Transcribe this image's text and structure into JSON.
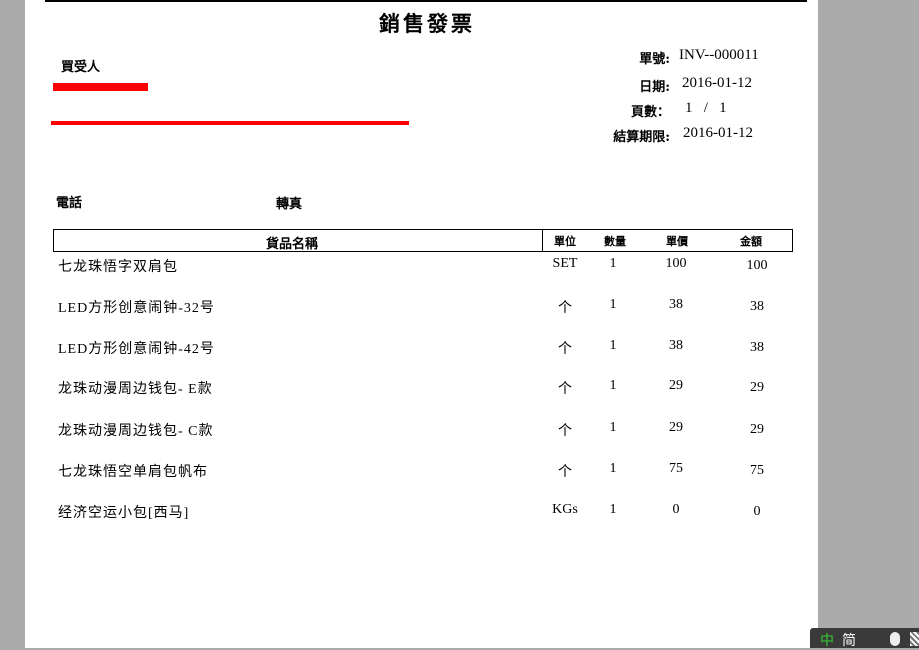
{
  "title": "銷售發票",
  "buyer": {
    "label": "買受人"
  },
  "meta": [
    {
      "label": "單號:",
      "value": "INV--000011"
    },
    {
      "label": "日期:",
      "value": "2016-01-12"
    },
    {
      "label": "頁數：",
      "value": "1   /   1"
    },
    {
      "label": "結算期限:",
      "value": "2016-01-12"
    }
  ],
  "contact": {
    "phone_label": "電話",
    "fax_label": "轉真"
  },
  "table": {
    "headers": [
      "貨品名稱",
      "單位",
      "數量",
      "單價",
      "金額"
    ],
    "rows": [
      [
        "七龙珠悟字双肩包",
        "SET",
        "1",
        "100",
        "100"
      ],
      [
        "LED方形创意闹钟-32号",
        "个",
        "1",
        "38",
        "38"
      ],
      [
        "LED方形创意闹钟-42号",
        "个",
        "1",
        "38",
        "38"
      ],
      [
        "龙珠动漫周边钱包- E款",
        "个",
        "1",
        "29",
        "29"
      ],
      [
        "龙珠动漫周边钱包- C款",
        "个",
        "1",
        "29",
        "29"
      ],
      [
        "七龙珠悟空单肩包帆布",
        "个",
        "1",
        "75",
        "75"
      ],
      [
        "经济空运小包[西马]",
        "KGs",
        "1",
        "0",
        "0"
      ]
    ]
  },
  "ime": {
    "mode": "中",
    "script": "简"
  },
  "colors": {
    "redaction": "#ff0000",
    "background": "#ababab"
  }
}
